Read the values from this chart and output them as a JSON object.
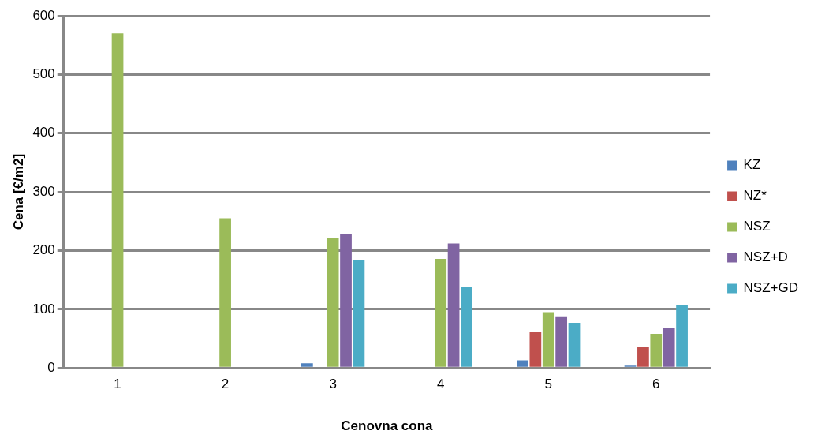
{
  "chart_data": {
    "type": "bar",
    "xlabel": "Cenovna cona",
    "ylabel": "Cena [€/m2]",
    "categories": [
      "1",
      "2",
      "3",
      "4",
      "5",
      "6"
    ],
    "series": [
      {
        "name": "KZ",
        "color": "#4f81bd",
        "values": [
          2,
          2,
          8,
          2,
          13,
          4
        ]
      },
      {
        "name": "NZ*",
        "color": "#c0504d",
        "values": [
          2,
          2,
          2,
          2,
          62,
          36
        ]
      },
      {
        "name": "NSZ",
        "color": "#9bbb59",
        "values": [
          570,
          255,
          221,
          186,
          95,
          58
        ]
      },
      {
        "name": "NSZ+D",
        "color": "#8064a2",
        "values": [
          2,
          2,
          229,
          212,
          88,
          69
        ]
      },
      {
        "name": "NSZ+GD",
        "color": "#4bacc6",
        "values": [
          2,
          2,
          184,
          138,
          77,
          107
        ]
      }
    ],
    "ylim": [
      0,
      600
    ],
    "yticks": [
      0,
      100,
      200,
      300,
      400,
      500,
      600
    ],
    "grid": "y",
    "legend": "right"
  }
}
